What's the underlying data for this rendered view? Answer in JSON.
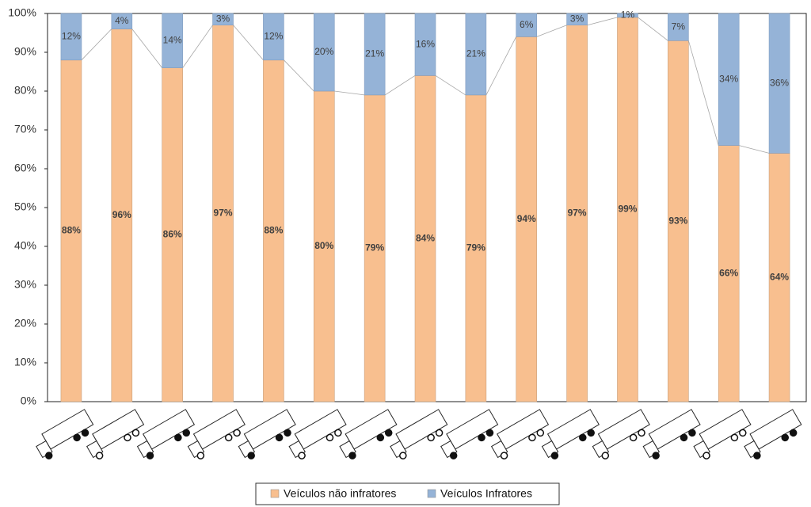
{
  "chart_data": {
    "type": "stacked_bar",
    "categories": [
      null,
      null,
      null,
      null,
      null,
      null,
      null,
      null,
      null,
      null,
      null,
      null,
      null,
      null,
      null
    ],
    "series": [
      {
        "name": "Veículos não infratores",
        "color": "#F8BF8F",
        "values": [
          88,
          96,
          86,
          97,
          88,
          80,
          79,
          84,
          79,
          94,
          97,
          99,
          93,
          66,
          64
        ],
        "value_labels": [
          "88%",
          "96%",
          "86%",
          "97%",
          "88%",
          "80%",
          "79%",
          "84%",
          "79%",
          "94%",
          "97%",
          "99%",
          "93%",
          "66%",
          "64%"
        ]
      },
      {
        "name": "Veículos Infratores",
        "color": "#95B3D7",
        "values": [
          12,
          4,
          14,
          3,
          12,
          20,
          21,
          16,
          21,
          6,
          3,
          1,
          7,
          34,
          36
        ],
        "value_labels": [
          "12%",
          "4%",
          "14%",
          "3%",
          "12%",
          "20%",
          "21%",
          "16%",
          "21%",
          "6%",
          "3%",
          "1%",
          "7%",
          "34%",
          "36%"
        ]
      }
    ],
    "ylim": [
      0,
      100
    ],
    "yticks": [
      {
        "value": 0,
        "label": "0%"
      },
      {
        "value": 10,
        "label": "10%"
      },
      {
        "value": 20,
        "label": "20%"
      },
      {
        "value": 30,
        "label": "30%"
      },
      {
        "value": 40,
        "label": "40%"
      },
      {
        "value": 50,
        "label": "50%"
      },
      {
        "value": 60,
        "label": "60%"
      },
      {
        "value": 70,
        "label": "70%"
      },
      {
        "value": 80,
        "label": "80%"
      },
      {
        "value": 90,
        "label": "90%"
      },
      {
        "value": 100,
        "label": "100%"
      }
    ],
    "grid": false,
    "legend": "bottom"
  }
}
